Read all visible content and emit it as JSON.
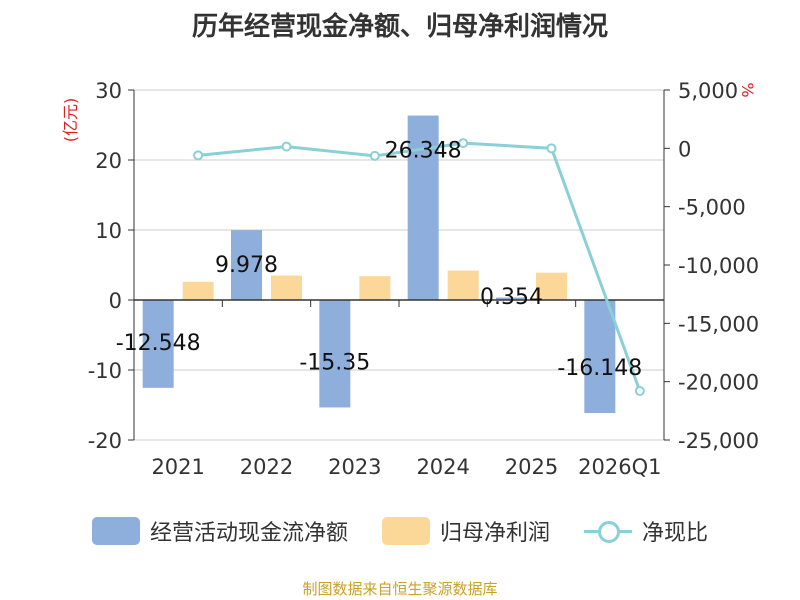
{
  "chart_data": {
    "type": "bar",
    "title": "历年经营现金净额、归母净利润情况",
    "categories": [
      "2021",
      "2022",
      "2023",
      "2024",
      "2025",
      "2026Q1"
    ],
    "left_axis": {
      "unit": "(亿元)",
      "ylim": [
        -20,
        30
      ],
      "ticks": [
        30,
        20,
        10,
        0,
        -10,
        -20
      ],
      "tick_labels": [
        "30",
        "20",
        "10",
        "0",
        "-10",
        "-20"
      ]
    },
    "right_axis": {
      "unit": "%",
      "ylim": [
        -25000,
        5000
      ],
      "ticks": [
        5000,
        0,
        -5000,
        -10000,
        -15000,
        -20000,
        -25000
      ],
      "tick_labels": [
        "5,000",
        "0",
        "-5,000",
        "-10,000",
        "-15,000",
        "-20,000",
        "-25,000"
      ]
    },
    "series": [
      {
        "name": "经营活动现金流净额",
        "type": "bar",
        "axis": "left",
        "color": "#8eaedc",
        "values": [
          -12.548,
          9.978,
          -15.35,
          26.348,
          0.354,
          -16.148
        ],
        "labels": [
          "-12.548",
          "9.978",
          "-15.35",
          "26.348",
          "0.354",
          "-16.148"
        ]
      },
      {
        "name": "归母净利润",
        "type": "bar",
        "axis": "left",
        "color": "#fcd898",
        "values": [
          2.6,
          3.5,
          3.4,
          4.2,
          3.9,
          -0.1
        ]
      },
      {
        "name": "净现比",
        "type": "line",
        "axis": "right",
        "color": "#8ad0d8",
        "values": [
          -600,
          150,
          -650,
          450,
          0,
          -20800
        ]
      }
    ],
    "grid": true,
    "legend": "bottom"
  },
  "source": "制图数据来自恒生聚源数据库"
}
